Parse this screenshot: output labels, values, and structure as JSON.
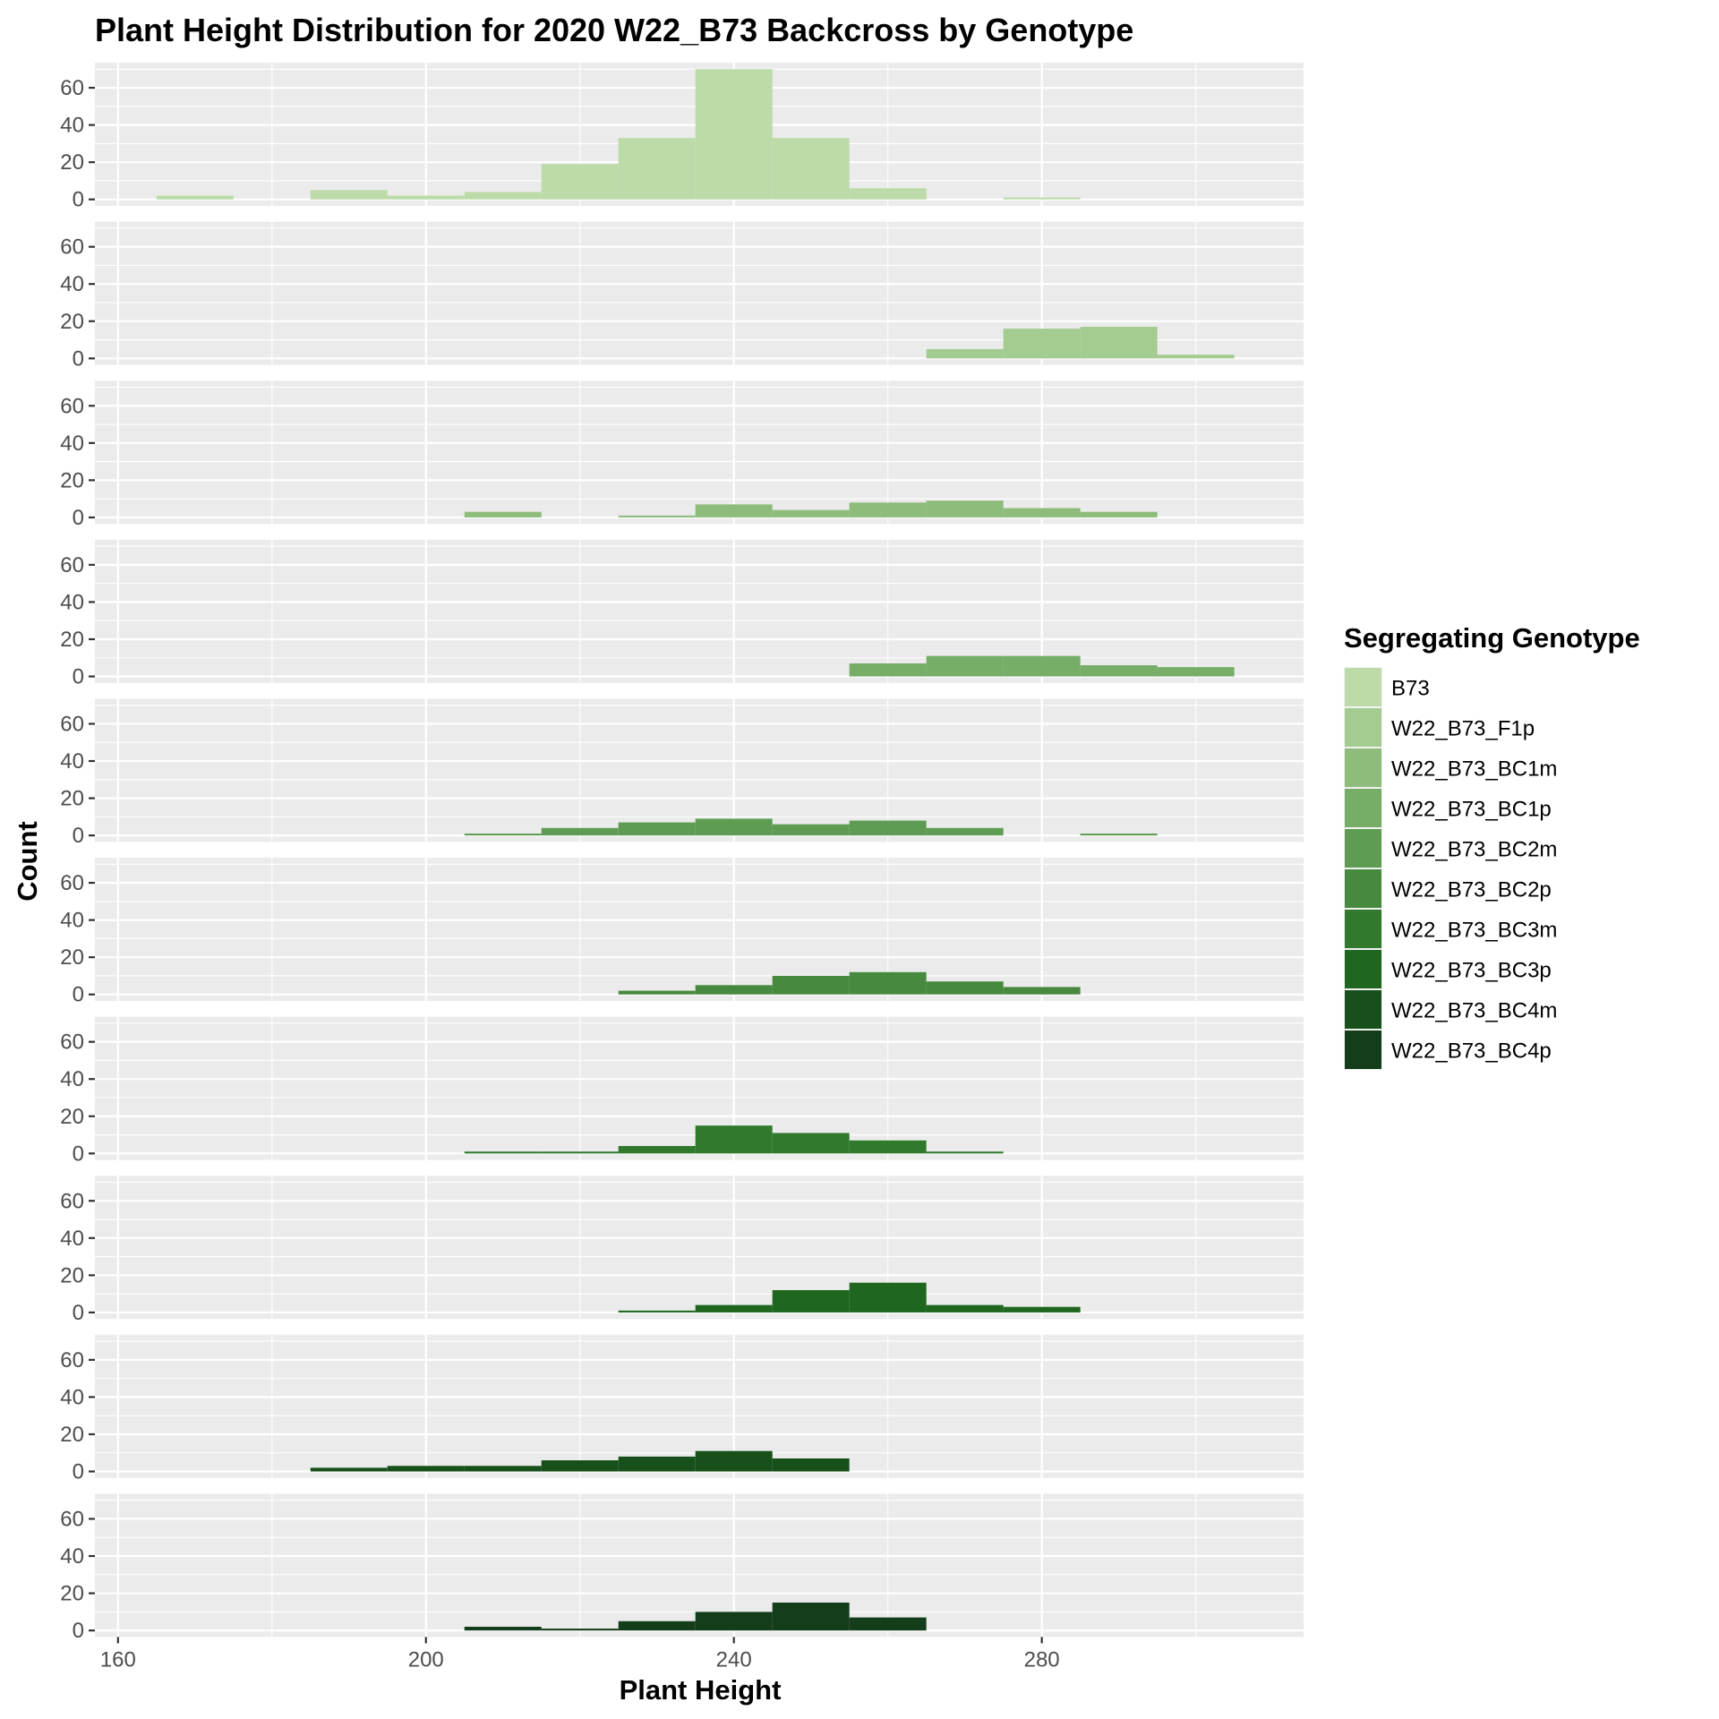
{
  "chart_data": {
    "type": "histogram",
    "title": "Plant Height Distribution for 2020 W22_B73 Backcross by Genotype",
    "xlabel": "Plant Height",
    "ylabel": "Count",
    "xlim": [
      157,
      314
    ],
    "ylim": [
      -3.5,
      73.5
    ],
    "x_ticks": [
      160,
      200,
      240,
      280
    ],
    "y_ticks": [
      0,
      20,
      40,
      60
    ],
    "bin_width": 10,
    "grid": true,
    "facet": "rows",
    "legend": {
      "title": "Segregating Genotype",
      "placement": "right"
    },
    "series": [
      {
        "name": "B73",
        "color": "#bcdba9",
        "bins": [
          [
            165,
            175,
            2
          ],
          [
            175,
            185,
            0
          ],
          [
            185,
            195,
            5
          ],
          [
            195,
            205,
            2
          ],
          [
            205,
            215,
            4
          ],
          [
            215,
            225,
            19
          ],
          [
            225,
            235,
            33
          ],
          [
            235,
            245,
            70
          ],
          [
            245,
            255,
            33
          ],
          [
            255,
            265,
            6
          ],
          [
            265,
            275,
            0
          ],
          [
            275,
            285,
            1
          ]
        ]
      },
      {
        "name": "W22_B73_F1p",
        "color": "#a4cb90",
        "bins": [
          [
            265,
            275,
            5
          ],
          [
            275,
            285,
            16
          ],
          [
            285,
            295,
            17
          ],
          [
            295,
            305,
            2
          ]
        ]
      },
      {
        "name": "W22_B73_BC1m",
        "color": "#8dbc7b",
        "bins": [
          [
            205,
            215,
            3
          ],
          [
            215,
            225,
            0
          ],
          [
            225,
            235,
            1
          ],
          [
            235,
            245,
            7
          ],
          [
            245,
            255,
            4
          ],
          [
            255,
            265,
            8
          ],
          [
            265,
            275,
            9
          ],
          [
            275,
            285,
            5
          ],
          [
            285,
            295,
            3
          ]
        ]
      },
      {
        "name": "W22_B73_BC1p",
        "color": "#76ad67",
        "bins": [
          [
            255,
            265,
            7
          ],
          [
            265,
            275,
            11
          ],
          [
            275,
            285,
            11
          ],
          [
            285,
            295,
            6
          ],
          [
            295,
            305,
            5
          ]
        ]
      },
      {
        "name": "W22_B73_BC2m",
        "color": "#5f9c53",
        "bins": [
          [
            205,
            215,
            1
          ],
          [
            215,
            225,
            4
          ],
          [
            225,
            235,
            7
          ],
          [
            235,
            245,
            9
          ],
          [
            245,
            255,
            6
          ],
          [
            255,
            265,
            8
          ],
          [
            265,
            275,
            4
          ],
          [
            275,
            285,
            0
          ],
          [
            285,
            295,
            1
          ]
        ]
      },
      {
        "name": "W22_B73_BC2p",
        "color": "#478a3f",
        "bins": [
          [
            225,
            235,
            2
          ],
          [
            235,
            245,
            5
          ],
          [
            245,
            255,
            10
          ],
          [
            255,
            265,
            12
          ],
          [
            265,
            275,
            7
          ],
          [
            275,
            285,
            4
          ]
        ]
      },
      {
        "name": "W22_B73_BC3m",
        "color": "#317a2d",
        "bins": [
          [
            205,
            215,
            1
          ],
          [
            215,
            225,
            1
          ],
          [
            225,
            235,
            4
          ],
          [
            235,
            245,
            15
          ],
          [
            245,
            255,
            11
          ],
          [
            255,
            265,
            7
          ],
          [
            265,
            275,
            1
          ]
        ]
      },
      {
        "name": "W22_B73_BC3p",
        "color": "#1f661e",
        "bins": [
          [
            225,
            235,
            1
          ],
          [
            235,
            245,
            4
          ],
          [
            245,
            255,
            12
          ],
          [
            255,
            265,
            16
          ],
          [
            265,
            275,
            4
          ],
          [
            275,
            285,
            3
          ]
        ]
      },
      {
        "name": "W22_B73_BC4m",
        "color": "#17501b",
        "bins": [
          [
            185,
            195,
            2
          ],
          [
            195,
            205,
            3
          ],
          [
            205,
            215,
            3
          ],
          [
            215,
            225,
            6
          ],
          [
            225,
            235,
            8
          ],
          [
            235,
            245,
            11
          ],
          [
            245,
            255,
            7
          ]
        ]
      },
      {
        "name": "W22_B73_BC4p",
        "color": "#143d1b",
        "bins": [
          [
            205,
            215,
            2
          ],
          [
            215,
            225,
            1
          ],
          [
            225,
            235,
            5
          ],
          [
            235,
            245,
            10
          ],
          [
            245,
            255,
            15
          ],
          [
            255,
            265,
            7
          ]
        ]
      }
    ]
  }
}
